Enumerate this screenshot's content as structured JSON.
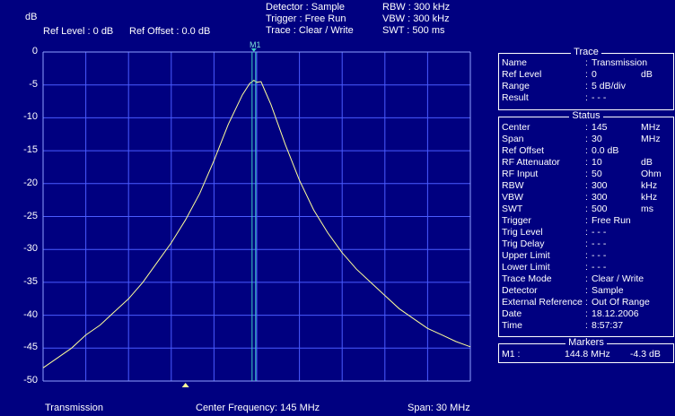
{
  "header": {
    "y_unit": "dB",
    "ref_level": "Ref Level : 0 dB",
    "ref_offset": "Ref Offset : 0.0 dB",
    "settings_col1": [
      "Detector : Sample",
      "Trigger : Free Run",
      "Trace : Clear / Write"
    ],
    "settings_col2": [
      "RBW : 300 kHz",
      "VBW : 300 kHz",
      "SWT : 500 ms"
    ]
  },
  "marker": {
    "label": "M1",
    "freq_mhz": 144.8,
    "level_db": -4.3
  },
  "footer": {
    "left": "Transmission",
    "center": "Center Frequency: 145 MHz",
    "right": "Span: 30 MHz"
  },
  "trace_panel": {
    "title": "Trace",
    "rows": [
      {
        "key": "Name",
        "value": "Transmission",
        "unit": ""
      },
      {
        "key": "Ref Level",
        "value": "0",
        "unit": "dB"
      },
      {
        "key": "Range",
        "value": "5 dB/div",
        "unit": ""
      },
      {
        "key": "Result",
        "value": "- - -",
        "unit": ""
      }
    ]
  },
  "status_panel": {
    "title": "Status",
    "rows": [
      {
        "key": "Center",
        "value": "145",
        "unit": "MHz"
      },
      {
        "key": "Span",
        "value": "30",
        "unit": "MHz"
      },
      {
        "key": "Ref Offset",
        "value": "0.0 dB",
        "unit": ""
      },
      {
        "key": "RF Attenuator",
        "value": "10",
        "unit": "dB"
      },
      {
        "key": "RF Input",
        "value": "50",
        "unit": "Ohm"
      },
      {
        "key": "RBW",
        "value": "300",
        "unit": "kHz"
      },
      {
        "key": "VBW",
        "value": "300",
        "unit": "kHz"
      },
      {
        "key": "SWT",
        "value": "500",
        "unit": "ms"
      },
      {
        "key": "Trigger",
        "value": "Free Run",
        "unit": ""
      },
      {
        "key": "Trig Level",
        "value": "- - -",
        "unit": ""
      },
      {
        "key": "Trig Delay",
        "value": "- - -",
        "unit": ""
      },
      {
        "key": "Upper Limit",
        "value": "- - -",
        "unit": ""
      },
      {
        "key": "Lower Limit",
        "value": "- - -",
        "unit": ""
      },
      {
        "key": "Trace Mode",
        "value": "Clear / Write",
        "unit": ""
      },
      {
        "key": "Detector",
        "value": "Sample",
        "unit": ""
      },
      {
        "key": "External Reference",
        "value": "Out Of Range",
        "unit": ""
      },
      {
        "key": "Date",
        "value": "18.12.2006",
        "unit": ""
      },
      {
        "key": "Time",
        "value": "8:57:37",
        "unit": ""
      }
    ]
  },
  "markers_panel": {
    "title": "Markers",
    "row": {
      "name": "M1 :",
      "freq": "144.8 MHz",
      "level": "-4.3 dB"
    }
  },
  "colors": {
    "background": "#000080",
    "grid": "#4a5cff",
    "trace": "#ffff99",
    "marker": "#3fd0c0"
  },
  "chart_data": {
    "type": "line",
    "title": "",
    "xlabel": "",
    "ylabel": "dB",
    "xlim": [
      130,
      160
    ],
    "ylim": [
      -50,
      0
    ],
    "ytick_labels": [
      "0",
      "-5",
      "-10",
      "-15",
      "-20",
      "-25",
      "-30",
      "-35",
      "-40",
      "-45",
      "-50"
    ],
    "grid": true,
    "series": [
      {
        "name": "Transmission",
        "x": [
          130,
          131,
          132,
          133,
          134,
          135,
          136,
          137,
          138,
          139,
          140,
          141,
          142,
          143,
          144,
          144.5,
          144.8,
          145,
          145.3,
          145.6,
          146,
          146.5,
          147,
          148,
          149,
          150,
          151,
          152,
          153,
          154,
          155,
          156,
          157,
          158,
          159,
          160
        ],
        "y": [
          -48,
          -46.5,
          -45,
          -43,
          -41.5,
          -39.5,
          -37.5,
          -35,
          -32,
          -29,
          -25.5,
          -21.5,
          -16.5,
          -11,
          -6.5,
          -4.8,
          -4.3,
          -4.6,
          -4.5,
          -6,
          -8,
          -11,
          -14,
          -19.5,
          -24,
          -27.5,
          -30.5,
          -33,
          -35,
          -37,
          -39,
          -40.5,
          -42,
          -43,
          -44,
          -44.8
        ]
      }
    ]
  }
}
